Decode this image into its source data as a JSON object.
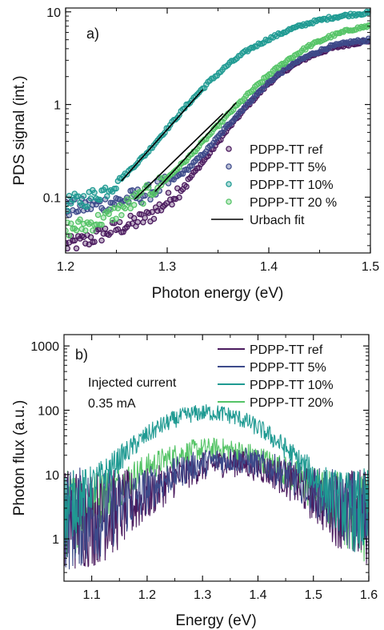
{
  "colors": {
    "ref": "#4a1a5e",
    "p5": "#3d4a8a",
    "p10": "#1f9a92",
    "p20": "#55c467",
    "fit": "#000000",
    "axis": "#111111"
  },
  "chart_data": [
    {
      "type": "scatter",
      "panel_label": "a)",
      "xlabel": "Photon energy (eV)",
      "ylabel": "PDS signal (int.)",
      "xlim": [
        1.2,
        1.5
      ],
      "ylim": [
        0.025,
        11
      ],
      "yscale": "log",
      "x_ticks": [
        1.2,
        1.3,
        1.4,
        1.5
      ],
      "x_tick_labels": [
        "1.2",
        "1.3",
        "1.4",
        "1.5"
      ],
      "y_ticks": [
        0.1,
        1,
        10
      ],
      "y_tick_labels": [
        "0.1",
        "1",
        "10"
      ],
      "legend_position": "right",
      "series": [
        {
          "name": "PDPP-TT ref",
          "key": "ref",
          "marker": "circle",
          "x": [
            1.2,
            1.22,
            1.24,
            1.26,
            1.28,
            1.3,
            1.32,
            1.34,
            1.36,
            1.38,
            1.4,
            1.42,
            1.44,
            1.46,
            1.48,
            1.5
          ],
          "y": [
            0.03,
            0.034,
            0.042,
            0.05,
            0.06,
            0.09,
            0.15,
            0.28,
            0.55,
            1.0,
            1.7,
            2.5,
            3.3,
            4.0,
            4.5,
            4.9
          ]
        },
        {
          "name": "PDPP-TT 5%",
          "key": "p5",
          "marker": "circle",
          "x": [
            1.2,
            1.22,
            1.24,
            1.26,
            1.28,
            1.3,
            1.32,
            1.34,
            1.36,
            1.38,
            1.4,
            1.42,
            1.44,
            1.46,
            1.48,
            1.5
          ],
          "y": [
            0.075,
            0.08,
            0.085,
            0.095,
            0.11,
            0.14,
            0.2,
            0.33,
            0.6,
            1.05,
            1.75,
            2.6,
            3.4,
            4.2,
            4.7,
            5.0
          ]
        },
        {
          "name": "PDPP-TT 10%",
          "key": "p10",
          "marker": "circle",
          "x": [
            1.2,
            1.22,
            1.24,
            1.26,
            1.28,
            1.3,
            1.32,
            1.34,
            1.36,
            1.38,
            1.4,
            1.42,
            1.44,
            1.46,
            1.48,
            1.5
          ],
          "y": [
            0.085,
            0.095,
            0.12,
            0.18,
            0.3,
            0.55,
            1.0,
            1.7,
            2.7,
            3.9,
            5.1,
            6.4,
            7.6,
            8.6,
            9.3,
            9.8
          ]
        },
        {
          "name": "PDPP-TT 20 %",
          "key": "p20",
          "marker": "circle",
          "x": [
            1.2,
            1.22,
            1.24,
            1.26,
            1.28,
            1.3,
            1.32,
            1.34,
            1.36,
            1.38,
            1.4,
            1.42,
            1.44,
            1.46,
            1.48,
            1.5
          ],
          "y": [
            0.045,
            0.05,
            0.06,
            0.08,
            0.11,
            0.16,
            0.26,
            0.45,
            0.78,
            1.3,
            2.1,
            3.1,
            4.3,
            5.4,
            6.4,
            7.1
          ]
        },
        {
          "name": "Urbach fit",
          "key": "fit",
          "marker": "line",
          "segments": [
            {
              "x": [
                1.255,
                1.335
              ],
              "y": [
                0.15,
                1.45
              ]
            },
            {
              "x": [
                1.268,
                1.355
              ],
              "y": [
                0.095,
                0.8
              ]
            },
            {
              "x": [
                1.288,
                1.368
              ],
              "y": [
                0.115,
                1.05
              ]
            }
          ]
        }
      ]
    },
    {
      "type": "line",
      "panel_label": "b)",
      "annotation_line1": "Injected current",
      "annotation_line2": "0.35 mA",
      "xlabel": "Energy (eV)",
      "ylabel": "Photon flux (a.u.)",
      "xlim": [
        1.05,
        1.6
      ],
      "ylim": [
        0.22,
        1500
      ],
      "yscale": "log",
      "x_ticks": [
        1.1,
        1.2,
        1.3,
        1.4,
        1.5,
        1.6
      ],
      "x_tick_labels": [
        "1.1",
        "1.2",
        "1.3",
        "1.4",
        "1.5",
        "1.6"
      ],
      "y_ticks": [
        1,
        10,
        100,
        1000
      ],
      "y_tick_labels": [
        "1",
        "10",
        "100",
        "1000"
      ],
      "legend_position": "top-right",
      "series": [
        {
          "name": "PDPP-TT ref",
          "key": "ref",
          "peak_x": 1.35,
          "peak_y": 13,
          "width": 0.085
        },
        {
          "name": "PDPP-TT 5%",
          "key": "p5",
          "peak_x": 1.35,
          "peak_y": 15,
          "width": 0.09
        },
        {
          "name": "PDPP-TT 10%",
          "key": "p10",
          "peak_x": 1.31,
          "peak_y": 90,
          "width": 0.085
        },
        {
          "name": "PDPP-TT 20%",
          "key": "p20",
          "peak_x": 1.32,
          "peak_y": 23,
          "width": 0.095
        }
      ]
    }
  ]
}
